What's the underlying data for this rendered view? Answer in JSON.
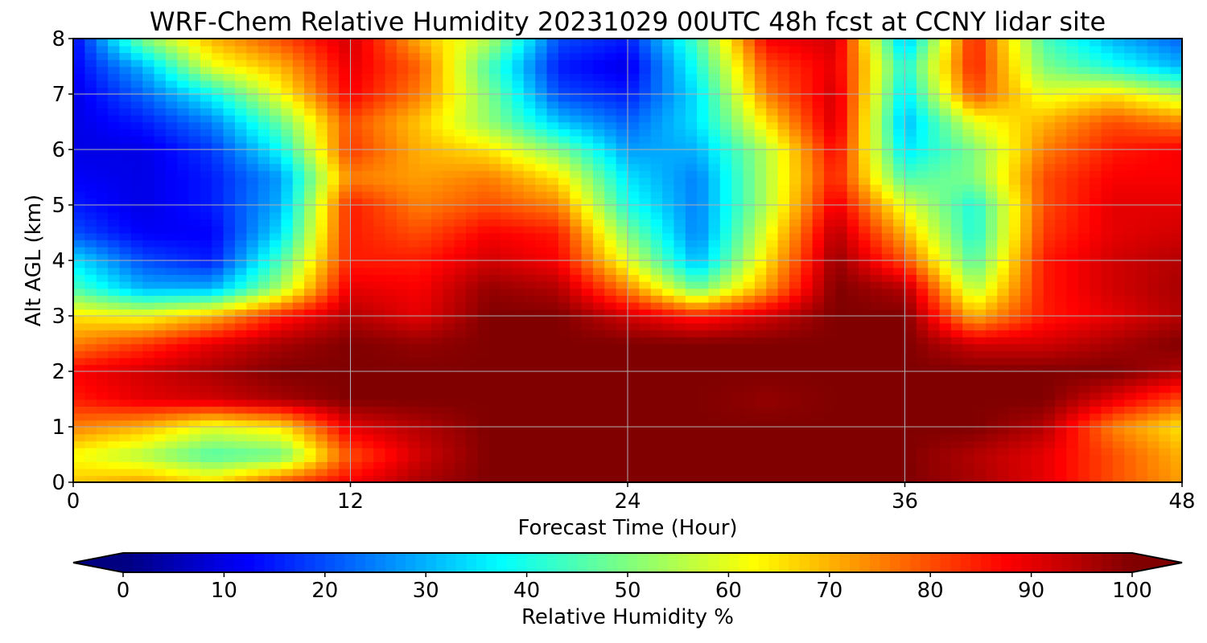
{
  "chart_data": {
    "type": "heatmap",
    "title": "WRF-Chem Relative Humidity 20231029 00UTC 48h fcst at CCNY lidar site",
    "xlabel": "Forecast Time (Hour)",
    "ylabel": "Alt AGL (km)",
    "xlim": [
      0,
      48
    ],
    "ylim": [
      0,
      8
    ],
    "x_ticks": [
      0,
      12,
      24,
      36,
      48
    ],
    "y_ticks": [
      0,
      1,
      2,
      3,
      4,
      5,
      6,
      7,
      8
    ],
    "grid": true,
    "colormap": "jet",
    "colorbar": {
      "label": "Relative Humidity %",
      "range": [
        0,
        100
      ],
      "ticks": [
        0,
        10,
        20,
        30,
        40,
        50,
        60,
        70,
        80,
        90,
        100
      ],
      "extend": "both",
      "placement": "bottom"
    },
    "x": [
      0,
      3,
      6,
      9,
      12,
      15,
      18,
      21,
      24,
      27,
      30,
      33,
      36,
      39,
      42,
      45,
      48
    ],
    "y": [
      0,
      0.5,
      1,
      1.5,
      2,
      2.5,
      3,
      3.5,
      4,
      4.5,
      5,
      5.5,
      6,
      6.5,
      7,
      7.5,
      8
    ],
    "z": [
      [
        68,
        72,
        66,
        80,
        88,
        96,
        100,
        100,
        100,
        100,
        100,
        100,
        100,
        96,
        90,
        80,
        72
      ],
      [
        62,
        55,
        45,
        48,
        80,
        92,
        100,
        100,
        100,
        100,
        100,
        100,
        100,
        95,
        90,
        80,
        70
      ],
      [
        75,
        70,
        60,
        65,
        90,
        95,
        100,
        100,
        100,
        100,
        100,
        100,
        100,
        100,
        95,
        75,
        65
      ],
      [
        85,
        90,
        92,
        96,
        100,
        100,
        100,
        100,
        100,
        100,
        98,
        100,
        100,
        100,
        100,
        90,
        80
      ],
      [
        88,
        92,
        96,
        100,
        100,
        100,
        100,
        100,
        100,
        100,
        100,
        100,
        100,
        100,
        100,
        100,
        95
      ],
      [
        75,
        82,
        90,
        96,
        100,
        98,
        100,
        100,
        100,
        100,
        100,
        100,
        100,
        92,
        92,
        96,
        100
      ],
      [
        65,
        62,
        70,
        85,
        95,
        90,
        100,
        100,
        92,
        85,
        92,
        100,
        100,
        70,
        85,
        90,
        95
      ],
      [
        45,
        30,
        30,
        55,
        90,
        88,
        98,
        95,
        75,
        48,
        72,
        100,
        95,
        55,
        85,
        92,
        96
      ],
      [
        35,
        20,
        15,
        45,
        85,
        85,
        92,
        88,
        60,
        30,
        65,
        98,
        80,
        45,
        85,
        92,
        95
      ],
      [
        20,
        12,
        12,
        35,
        85,
        80,
        88,
        85,
        50,
        25,
        60,
        95,
        70,
        40,
        82,
        90,
        92
      ],
      [
        15,
        10,
        15,
        30,
        85,
        75,
        80,
        75,
        40,
        25,
        55,
        90,
        60,
        40,
        80,
        90,
        90
      ],
      [
        12,
        10,
        15,
        28,
        75,
        72,
        75,
        65,
        35,
        25,
        55,
        85,
        45,
        50,
        80,
        88,
        88
      ],
      [
        10,
        10,
        18,
        38,
        82,
        70,
        65,
        50,
        28,
        30,
        55,
        88,
        35,
        50,
        75,
        85,
        88
      ],
      [
        10,
        15,
        25,
        48,
        80,
        68,
        52,
        32,
        22,
        35,
        65,
        92,
        30,
        60,
        70,
        80,
        75
      ],
      [
        10,
        22,
        38,
        62,
        88,
        75,
        50,
        20,
        15,
        35,
        75,
        92,
        35,
        80,
        60,
        65,
        55
      ],
      [
        12,
        30,
        60,
        70,
        90,
        78,
        45,
        15,
        10,
        40,
        80,
        90,
        40,
        85,
        50,
        40,
        30
      ],
      [
        12,
        50,
        70,
        80,
        92,
        70,
        55,
        20,
        15,
        45,
        88,
        92,
        30,
        85,
        45,
        30,
        22
      ]
    ]
  }
}
